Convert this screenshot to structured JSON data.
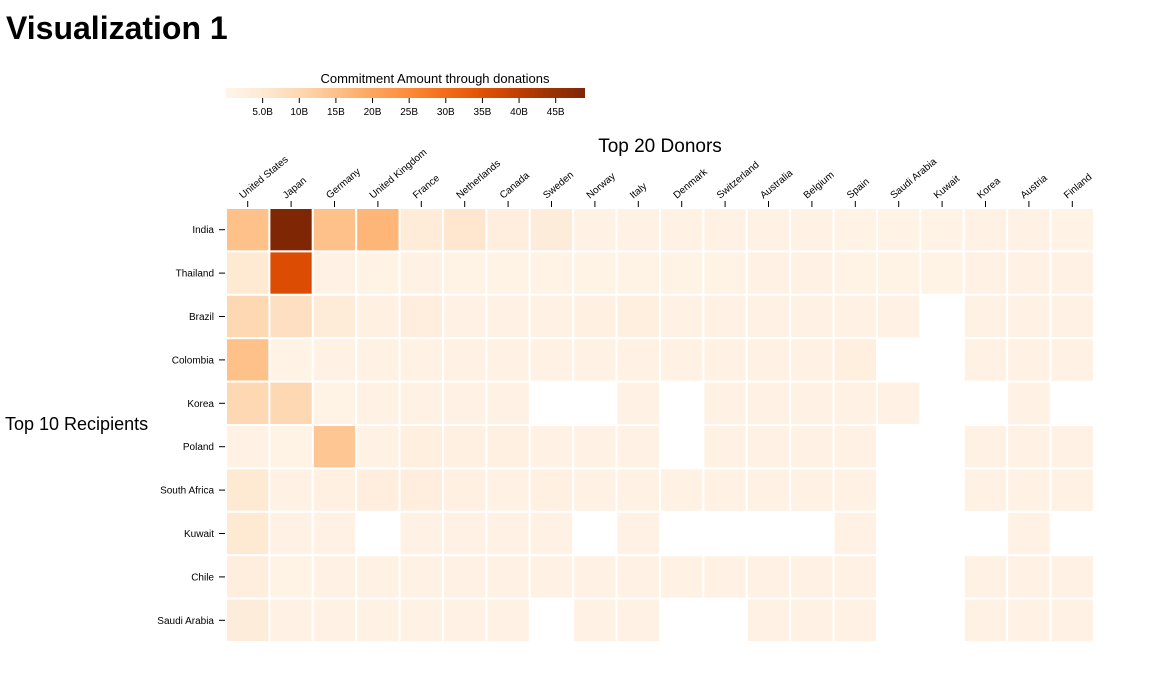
{
  "page": {
    "title": "Visualization 1"
  },
  "chart_data": {
    "type": "heatmap",
    "title": "Top 20 Donors",
    "xlabel": "Top 20 Donors",
    "ylabel": "Top 10 Recipients",
    "legend": {
      "title": "Commitment Amount through donations",
      "ticks": [
        "5.0B",
        "10B",
        "15B",
        "20B",
        "25B",
        "30B",
        "35B",
        "40B",
        "45B"
      ],
      "tick_values": [
        5,
        10,
        15,
        20,
        25,
        30,
        35,
        40,
        45
      ],
      "domain": [
        0,
        49
      ],
      "color_low": "#fff5eb",
      "color_high": "#7f2704"
    },
    "units": "billions",
    "x": [
      "United States",
      "Japan",
      "Germany",
      "United Kingdom",
      "France",
      "Netherlands",
      "Canada",
      "Sweden",
      "Norway",
      "Italy",
      "Denmark",
      "Switzerland",
      "Australia",
      "Belgium",
      "Spain",
      "Saudi Arabia",
      "Kuwait",
      "Korea",
      "Austria",
      "Finland"
    ],
    "y": [
      "India",
      "Thailand",
      "Brazil",
      "Colombia",
      "Korea",
      "Poland",
      "South Africa",
      "Kuwait",
      "Chile",
      "Saudi Arabia"
    ],
    "values": [
      [
        15,
        49,
        15,
        17,
        4,
        6,
        3,
        3.5,
        1.5,
        1.5,
        1.5,
        1.5,
        1.5,
        1.5,
        1,
        1,
        1,
        1.5,
        1.5,
        1
      ],
      [
        5,
        36,
        1.5,
        1,
        1.5,
        1,
        1,
        1,
        1,
        1,
        1,
        1,
        1.5,
        1.5,
        1,
        1,
        1,
        1.5,
        1.5,
        1.5
      ],
      [
        10,
        8,
        4,
        2,
        3,
        1.5,
        1.5,
        1.5,
        2,
        2.5,
        1.5,
        1.5,
        1.5,
        1.5,
        1.5,
        1.5,
        null,
        1.5,
        1.5,
        1.5
      ],
      [
        15,
        1,
        1.5,
        1.5,
        1.5,
        1.5,
        1.5,
        1.5,
        1.5,
        1.5,
        1.5,
        1.5,
        1.5,
        1.5,
        2.5,
        null,
        null,
        1.5,
        1.5,
        1.5
      ],
      [
        10,
        10,
        1,
        1.5,
        1.5,
        1.5,
        1.5,
        null,
        null,
        1.5,
        null,
        1.5,
        1.5,
        1.5,
        1.5,
        1.5,
        null,
        null,
        1.5,
        null
      ],
      [
        1.5,
        1,
        14,
        1.5,
        2.5,
        2,
        2,
        1.5,
        1.5,
        1.5,
        null,
        1.5,
        1.5,
        1.5,
        1.5,
        null,
        null,
        1.5,
        1.5,
        1.5
      ],
      [
        5,
        1.5,
        2,
        3,
        3,
        2,
        1.5,
        2,
        1.5,
        1.5,
        1.5,
        1.5,
        1.5,
        1.5,
        1.5,
        null,
        null,
        1.5,
        1.5,
        1.5
      ],
      [
        5,
        1.5,
        1.5,
        null,
        1.5,
        1.5,
        1.5,
        1.5,
        null,
        1.5,
        null,
        null,
        null,
        null,
        1.5,
        null,
        null,
        null,
        1.5,
        null
      ],
      [
        3,
        1,
        1.5,
        1.5,
        1.5,
        1.5,
        1.5,
        1.5,
        1.5,
        1.5,
        1.5,
        1.5,
        1.5,
        1.5,
        1.5,
        null,
        null,
        1.5,
        1.5,
        1.5
      ],
      [
        3.5,
        1.5,
        1.5,
        1.5,
        1.5,
        1.5,
        1.5,
        null,
        1.5,
        1.5,
        null,
        null,
        1.5,
        1.5,
        1.5,
        null,
        null,
        1.5,
        1.5,
        1.5
      ]
    ]
  }
}
